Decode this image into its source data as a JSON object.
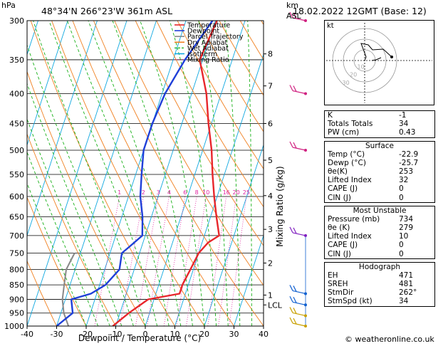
{
  "header": {
    "hpa_unit": "hPa",
    "location": "48°34'N  266°23'W  361m  ASL",
    "height_unit_km": "km",
    "height_unit_asl": "ASL",
    "datetime": "18.02.2022  12GMT  (Base: 12)"
  },
  "chart_data": {
    "type": "skew-t log-p",
    "xlabel": "Dewpoint / Temperature (°C)",
    "ylabel_right": "Mixing Ratio (g/kg)",
    "x_ticks": [
      -40,
      -30,
      -20,
      -10,
      0,
      10,
      20,
      30,
      40
    ],
    "pressure_levels": [
      300,
      350,
      400,
      450,
      500,
      550,
      600,
      650,
      700,
      750,
      800,
      850,
      900,
      950,
      1000
    ],
    "km_ticks": [
      {
        "label": "8",
        "p": 342
      },
      {
        "label": "7",
        "p": 388
      },
      {
        "label": "6",
        "p": 450
      },
      {
        "label": "5",
        "p": 520
      },
      {
        "label": "4",
        "p": 598
      },
      {
        "label": "3",
        "p": 683
      },
      {
        "label": "2",
        "p": 780
      },
      {
        "label": "1",
        "p": 885
      },
      {
        "label": "LCL",
        "p": 920
      }
    ],
    "mixing_ratio_labels": [
      "1",
      "2",
      "3",
      "4",
      "6",
      "8",
      "10",
      "16",
      "20",
      "25"
    ],
    "legend": [
      {
        "name": "Temperature",
        "color": "#e8262b"
      },
      {
        "name": "Dewpoint",
        "color": "#1f3fd8"
      },
      {
        "name": "Parcel Trajectory",
        "color": "#888888"
      },
      {
        "name": "Dry Adiabat",
        "color": "#f08020"
      },
      {
        "name": "Wet Adiabat",
        "color": "#18b018"
      },
      {
        "name": "Isotherm",
        "color": "#10a8e0"
      },
      {
        "name": "Mixing Ratio",
        "color": "#e020a0"
      }
    ],
    "temperature": [
      [
        300,
        -9.5
      ],
      [
        350,
        -11
      ],
      [
        400,
        -5
      ],
      [
        450,
        -1
      ],
      [
        500,
        3
      ],
      [
        550,
        6
      ],
      [
        600,
        9
      ],
      [
        650,
        12
      ],
      [
        700,
        15
      ],
      [
        720,
        12
      ],
      [
        750,
        10
      ],
      [
        800,
        9
      ],
      [
        850,
        8
      ],
      [
        880,
        8
      ],
      [
        900,
        -2
      ],
      [
        950,
        -7
      ],
      [
        1000,
        -11
      ]
    ],
    "dewpoint": [
      [
        300,
        -11
      ],
      [
        350,
        -16
      ],
      [
        400,
        -19
      ],
      [
        450,
        -20
      ],
      [
        500,
        -20
      ],
      [
        550,
        -18
      ],
      [
        600,
        -16
      ],
      [
        650,
        -13
      ],
      [
        700,
        -11
      ],
      [
        730,
        -14
      ],
      [
        750,
        -16
      ],
      [
        800,
        -15
      ],
      [
        850,
        -18
      ],
      [
        880,
        -22
      ],
      [
        900,
        -28
      ],
      [
        950,
        -26
      ],
      [
        1000,
        -30
      ]
    ],
    "parcel": [
      [
        750,
        -32
      ],
      [
        800,
        -33
      ],
      [
        850,
        -32
      ],
      [
        900,
        -31
      ],
      [
        950,
        -29
      ],
      [
        1000,
        -26
      ]
    ],
    "colors": {
      "temperature": "#e8262b",
      "dewpoint": "#1f3fd8",
      "parcel": "#888888",
      "dry_adiabat": "#f08020",
      "wet_adiabat": "#18b018",
      "isotherm": "#10a8e0",
      "mixing_ratio": "#e020a0",
      "wind_upper": "#d02080",
      "wind_mid": "#8020c0",
      "wind_low": "#1060d0",
      "wind_sfc": "#c8a000"
    }
  },
  "hodograph": {
    "label": "kt",
    "ring_labels": [
      "10",
      "20",
      "30"
    ]
  },
  "indices": [
    {
      "label": "K",
      "value": "-1"
    },
    {
      "label": "Totals Totals",
      "value": "34"
    },
    {
      "label": "PW (cm)",
      "value": "0.43"
    }
  ],
  "surface": {
    "title": "Surface",
    "rows": [
      {
        "label": "Temp (°C)",
        "value": "-22.9"
      },
      {
        "label": "Dewp (°C)",
        "value": "-25.7"
      },
      {
        "label": "θe(K)",
        "value": "253"
      },
      {
        "label": "Lifted Index",
        "value": "32"
      },
      {
        "label": "CAPE (J)",
        "value": "0"
      },
      {
        "label": "CIN (J)",
        "value": "0"
      }
    ]
  },
  "most_unstable": {
    "title": "Most Unstable",
    "rows": [
      {
        "label": "Pressure (mb)",
        "value": "734"
      },
      {
        "label": "θe (K)",
        "value": "279"
      },
      {
        "label": "Lifted Index",
        "value": "10"
      },
      {
        "label": "CAPE (J)",
        "value": "0"
      },
      {
        "label": "CIN (J)",
        "value": "0"
      }
    ]
  },
  "hodograph_table": {
    "title": "Hodograph",
    "rows": [
      {
        "label": "EH",
        "value": "471"
      },
      {
        "label": "SREH",
        "value": "481"
      },
      {
        "label": "StmDir",
        "value": "262°"
      },
      {
        "label": "StmSpd (kt)",
        "value": "34"
      }
    ]
  },
  "copyright": "© weatheronline.co.uk"
}
